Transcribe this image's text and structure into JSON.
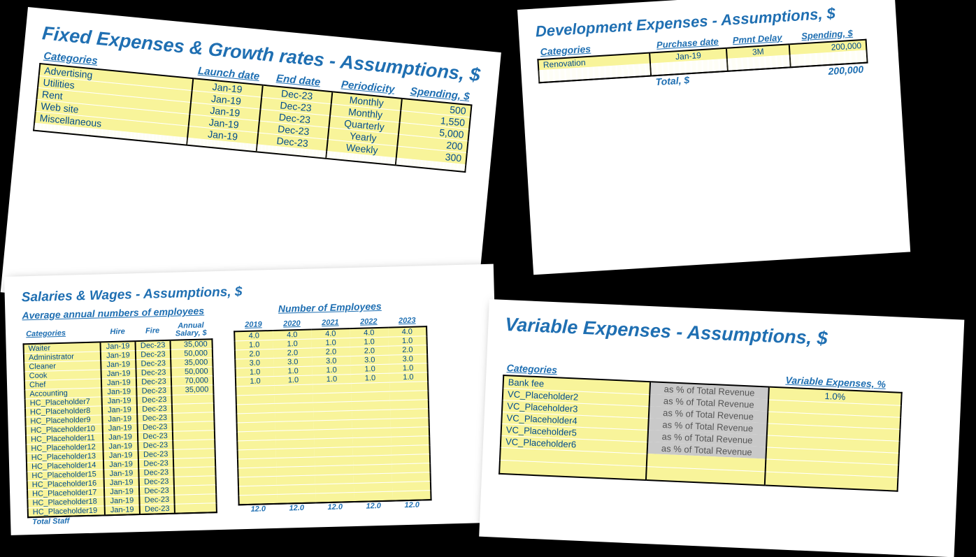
{
  "colors": {
    "heading": "#1f6fb2",
    "cell_text": "#004b8d",
    "zone_bg": "#f8f49a",
    "grey_bg": "#c9c9c9",
    "sheet_bg": "#ffffff",
    "page_bg": "#000000"
  },
  "fixed": {
    "title": "Fixed Expenses & Growth rates - Assumptions, $",
    "headers": {
      "categories": "Categories",
      "launch": "Launch date",
      "end": "End date",
      "period": "Periodicity",
      "spend": "Spending, $"
    },
    "rows": [
      {
        "cat": "Advertising",
        "launch": "Jan-19",
        "end": "Dec-23",
        "period": "Monthly",
        "spend": "500"
      },
      {
        "cat": "Utilities",
        "launch": "Jan-19",
        "end": "Dec-23",
        "period": "Monthly",
        "spend": "1,550"
      },
      {
        "cat": "Rent",
        "launch": "Jan-19",
        "end": "Dec-23",
        "period": "Quarterly",
        "spend": "5,000"
      },
      {
        "cat": "Web site",
        "launch": "Jan-19",
        "end": "Dec-23",
        "period": "Yearly",
        "spend": "200"
      },
      {
        "cat": "Miscellaneous",
        "launch": "Jan-19",
        "end": "Dec-23",
        "period": "Weekly",
        "spend": "300"
      }
    ],
    "blank_rows": 10
  },
  "dev": {
    "title": "Development Expenses - Assumptions, $",
    "headers": {
      "categories": "Categories",
      "pdate": "Purchase date",
      "delay": "Pmnt Delay",
      "spend": "Spending, $"
    },
    "rows": [
      {
        "cat": "Renovation",
        "pdate": "Jan-19",
        "delay": "3M",
        "spend": "200,000"
      }
    ],
    "blank_rows": 17,
    "total_label": "Total, $",
    "total_value": "200,000"
  },
  "sal": {
    "title": "Salaries & Wages - Assumptions, $",
    "left_subhead": "Average annual numbers of employees",
    "right_subhead": "Number of Employees",
    "headers": {
      "categories": "Categories",
      "hire": "Hire",
      "fire": "Fire",
      "salary": "Annual Salary, $"
    },
    "years": [
      "2019",
      "2020",
      "2021",
      "2022",
      "2023"
    ],
    "rows": [
      {
        "cat": "Waiter",
        "hire": "Jan-19",
        "fire": "Dec-23",
        "salary": "35,000",
        "n": [
          "4.0",
          "4.0",
          "4.0",
          "4.0",
          "4.0"
        ]
      },
      {
        "cat": "Administrator",
        "hire": "Jan-19",
        "fire": "Dec-23",
        "salary": "50,000",
        "n": [
          "1.0",
          "1.0",
          "1.0",
          "1.0",
          "1.0"
        ]
      },
      {
        "cat": "Cleaner",
        "hire": "Jan-19",
        "fire": "Dec-23",
        "salary": "35,000",
        "n": [
          "2.0",
          "2.0",
          "2.0",
          "2.0",
          "2.0"
        ]
      },
      {
        "cat": "Cook",
        "hire": "Jan-19",
        "fire": "Dec-23",
        "salary": "50,000",
        "n": [
          "3.0",
          "3.0",
          "3.0",
          "3.0",
          "3.0"
        ]
      },
      {
        "cat": "Chef",
        "hire": "Jan-19",
        "fire": "Dec-23",
        "salary": "70,000",
        "n": [
          "1.0",
          "1.0",
          "1.0",
          "1.0",
          "1.0"
        ]
      },
      {
        "cat": "Accounting",
        "hire": "Jan-19",
        "fire": "Dec-23",
        "salary": "35,000",
        "n": [
          "1.0",
          "1.0",
          "1.0",
          "1.0",
          "1.0"
        ]
      },
      {
        "cat": "HC_Placeholder7",
        "hire": "Jan-19",
        "fire": "Dec-23",
        "salary": "",
        "n": [
          "",
          "",
          "",
          "",
          ""
        ]
      },
      {
        "cat": "HC_Placeholder8",
        "hire": "Jan-19",
        "fire": "Dec-23",
        "salary": "",
        "n": [
          "",
          "",
          "",
          "",
          ""
        ]
      },
      {
        "cat": "HC_Placeholder9",
        "hire": "Jan-19",
        "fire": "Dec-23",
        "salary": "",
        "n": [
          "",
          "",
          "",
          "",
          ""
        ]
      },
      {
        "cat": "HC_Placeholder10",
        "hire": "Jan-19",
        "fire": "Dec-23",
        "salary": "",
        "n": [
          "",
          "",
          "",
          "",
          ""
        ]
      },
      {
        "cat": "HC_Placeholder11",
        "hire": "Jan-19",
        "fire": "Dec-23",
        "salary": "",
        "n": [
          "",
          "",
          "",
          "",
          ""
        ]
      },
      {
        "cat": "HC_Placeholder12",
        "hire": "Jan-19",
        "fire": "Dec-23",
        "salary": "",
        "n": [
          "",
          "",
          "",
          "",
          ""
        ]
      },
      {
        "cat": "HC_Placeholder13",
        "hire": "Jan-19",
        "fire": "Dec-23",
        "salary": "",
        "n": [
          "",
          "",
          "",
          "",
          ""
        ]
      },
      {
        "cat": "HC_Placeholder14",
        "hire": "Jan-19",
        "fire": "Dec-23",
        "salary": "",
        "n": [
          "",
          "",
          "",
          "",
          ""
        ]
      },
      {
        "cat": "HC_Placeholder15",
        "hire": "Jan-19",
        "fire": "Dec-23",
        "salary": "",
        "n": [
          "",
          "",
          "",
          "",
          ""
        ]
      },
      {
        "cat": "HC_Placeholder16",
        "hire": "Jan-19",
        "fire": "Dec-23",
        "salary": "",
        "n": [
          "",
          "",
          "",
          "",
          ""
        ]
      },
      {
        "cat": "HC_Placeholder17",
        "hire": "Jan-19",
        "fire": "Dec-23",
        "salary": "",
        "n": [
          "",
          "",
          "",
          "",
          ""
        ]
      },
      {
        "cat": "HC_Placeholder18",
        "hire": "Jan-19",
        "fire": "Dec-23",
        "salary": "",
        "n": [
          "",
          "",
          "",
          "",
          ""
        ]
      },
      {
        "cat": "HC_Placeholder19",
        "hire": "Jan-19",
        "fire": "Dec-23",
        "salary": "",
        "n": [
          "",
          "",
          "",
          "",
          ""
        ]
      }
    ],
    "total_label": "Total Staff",
    "totals": [
      "12.0",
      "12.0",
      "12.0",
      "12.0",
      "12.0"
    ]
  },
  "var": {
    "title": "Variable Expenses - Assumptions, $",
    "headers": {
      "categories": "Categories",
      "ve": "Variable Expenses, %"
    },
    "basis_text": "as % of Total Revenue",
    "rows": [
      {
        "cat": "Bank fee",
        "val": "1.0%"
      },
      {
        "cat": "VC_Placeholder2",
        "val": ""
      },
      {
        "cat": "VC_Placeholder3",
        "val": ""
      },
      {
        "cat": "VC_Placeholder4",
        "val": ""
      },
      {
        "cat": "VC_Placeholder5",
        "val": ""
      },
      {
        "cat": "VC_Placeholder6",
        "val": ""
      }
    ],
    "blank_rows": 2
  }
}
